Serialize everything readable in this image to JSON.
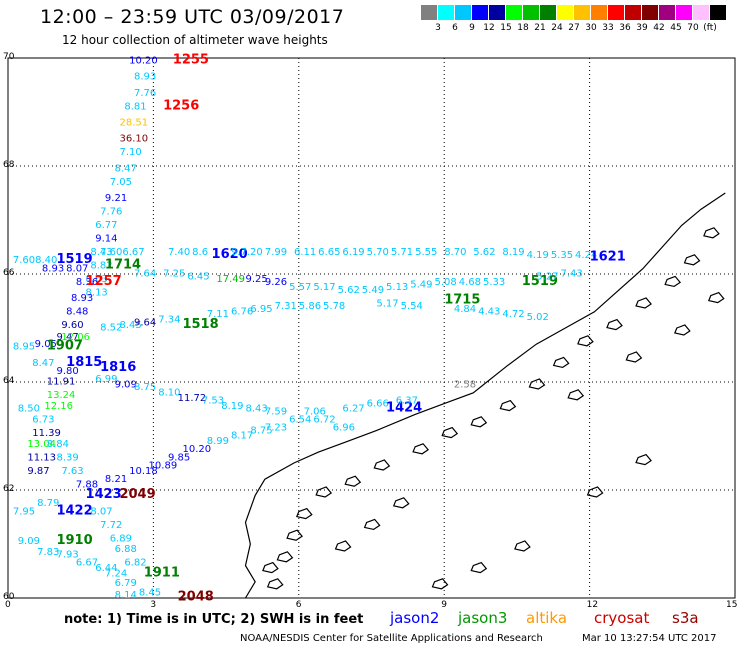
{
  "header": {
    "title": "12:00 – 23:59 UTC 03/09/2017",
    "subtitle": "12 hour collection of altimeter wave heights"
  },
  "scale": {
    "colors": [
      "#808080",
      "#00ffff",
      "#00c8ff",
      "#0000ff",
      "#0000a0",
      "#00ff00",
      "#00c000",
      "#008000",
      "#ffff00",
      "#ffc000",
      "#ff8000",
      "#ff0000",
      "#c00000",
      "#800000",
      "#a00080",
      "#ff00ff",
      "#ffc0ff",
      "#000000"
    ],
    "labels": [
      "3",
      "6",
      "9",
      "12",
      "15",
      "18",
      "21",
      "24",
      "27",
      "30",
      "33",
      "36",
      "39",
      "42",
      "45",
      "70",
      "(ft)"
    ]
  },
  "axes": {
    "y": [
      {
        "v": "70"
      },
      {
        "v": "68"
      },
      {
        "v": "66"
      },
      {
        "v": "64"
      },
      {
        "v": "62"
      },
      {
        "v": "60"
      }
    ],
    "x": [
      {
        "v": "0"
      },
      {
        "v": "3"
      },
      {
        "v": "6"
      },
      {
        "v": "9"
      },
      {
        "v": "12"
      },
      {
        "v": "15"
      }
    ]
  },
  "observations": [
    {
      "t": "10.20",
      "lon": 2.5,
      "lat": 69.9,
      "c": "#0000ff"
    },
    {
      "t": "1255",
      "lon": 3.4,
      "lat": 69.9,
      "c": "#ff0000"
    },
    {
      "t": "8.93",
      "lon": 2.6,
      "lat": 69.6,
      "c": "#00c8ff"
    },
    {
      "t": "7.76",
      "lon": 2.6,
      "lat": 69.3,
      "c": "#00c8ff"
    },
    {
      "t": "8.81",
      "lon": 2.4,
      "lat": 69.05,
      "c": "#00c8ff"
    },
    {
      "t": "1256",
      "lon": 3.2,
      "lat": 69.05,
      "c": "#ff0000"
    },
    {
      "t": "28.51",
      "lon": 2.3,
      "lat": 68.75,
      "c": "#ffc000"
    },
    {
      "t": "36.10",
      "lon": 2.3,
      "lat": 68.45,
      "c": "#800000"
    },
    {
      "t": "7.10",
      "lon": 2.3,
      "lat": 68.2,
      "c": "#00c8ff"
    },
    {
      "t": "8.47",
      "lon": 2.2,
      "lat": 67.9,
      "c": "#00c8ff"
    },
    {
      "t": "7.05",
      "lon": 2.1,
      "lat": 67.65,
      "c": "#00c8ff"
    },
    {
      "t": "9.21",
      "lon": 2.0,
      "lat": 67.35,
      "c": "#0000ff"
    },
    {
      "t": "7.76",
      "lon": 1.9,
      "lat": 67.1,
      "c": "#00c8ff"
    },
    {
      "t": "6.77",
      "lon": 1.8,
      "lat": 66.85,
      "c": "#00c8ff"
    },
    {
      "t": "9.14",
      "lon": 1.8,
      "lat": 66.6,
      "c": "#0000ff"
    },
    {
      "t": "8.43",
      "lon": 1.7,
      "lat": 66.35,
      "c": "#00c8ff"
    },
    {
      "t": "8.82",
      "lon": 1.7,
      "lat": 66.1,
      "c": "#00c8ff"
    },
    {
      "t": "8.63",
      "lon": 1.6,
      "lat": 65.85,
      "c": "#00c8ff"
    },
    {
      "t": "8.13",
      "lon": 1.6,
      "lat": 65.6,
      "c": "#00c8ff"
    },
    {
      "t": "7.608.40",
      "lon": 0.1,
      "lat": 66.2,
      "c": "#00c8ff"
    },
    {
      "t": "1519",
      "lon": 1.0,
      "lat": 66.2,
      "c": "#0000ff"
    },
    {
      "t": "7.606.67",
      "lon": 1.9,
      "lat": 66.35,
      "c": "#00c8ff"
    },
    {
      "t": "8.93",
      "lon": 0.7,
      "lat": 66.05,
      "c": "#0000ff"
    },
    {
      "t": "8.07",
      "lon": 1.2,
      "lat": 66.05,
      "c": "#0000ff"
    },
    {
      "t": "1714",
      "lon": 2.0,
      "lat": 66.1,
      "c": "#008000"
    },
    {
      "t": "8.36",
      "lon": 1.4,
      "lat": 65.8,
      "c": "#0000ff"
    },
    {
      "t": "1257",
      "lon": 1.6,
      "lat": 65.8,
      "c": "#ff0000"
    },
    {
      "t": "8.93",
      "lon": 1.3,
      "lat": 65.5,
      "c": "#0000ff"
    },
    {
      "t": "8.48",
      "lon": 1.2,
      "lat": 65.25,
      "c": "#0000ff"
    },
    {
      "t": "9.60",
      "lon": 1.1,
      "lat": 65.0,
      "c": "#0000a0"
    },
    {
      "t": "9.47",
      "lon": 1.0,
      "lat": 64.78,
      "c": "#0000a0"
    },
    {
      "t": "8.95",
      "lon": 0.1,
      "lat": 64.6,
      "c": "#00c8ff"
    },
    {
      "t": "9.05",
      "lon": 0.55,
      "lat": 64.65,
      "c": "#0000ff"
    },
    {
      "t": "1907",
      "lon": 0.8,
      "lat": 64.6,
      "c": "#008000"
    },
    {
      "t": "12.06",
      "lon": 1.1,
      "lat": 64.78,
      "c": "#00ff00"
    },
    {
      "t": "8.47",
      "lon": 0.5,
      "lat": 64.3,
      "c": "#00c8ff"
    },
    {
      "t": "1815",
      "lon": 1.2,
      "lat": 64.3,
      "c": "#0000ff"
    },
    {
      "t": "1816",
      "lon": 1.9,
      "lat": 64.2,
      "c": "#0000ff"
    },
    {
      "t": "9.80",
      "lon": 1.0,
      "lat": 64.15,
      "c": "#0000ff"
    },
    {
      "t": "6.99",
      "lon": 1.8,
      "lat": 64.0,
      "c": "#00c8ff"
    },
    {
      "t": "11.91",
      "lon": 0.8,
      "lat": 63.95,
      "c": "#0000a0"
    },
    {
      "t": "13.24",
      "lon": 0.8,
      "lat": 63.7,
      "c": "#00ff00"
    },
    {
      "t": "8.50",
      "lon": 0.2,
      "lat": 63.45,
      "c": "#00c8ff"
    },
    {
      "t": "12.16",
      "lon": 0.75,
      "lat": 63.5,
      "c": "#00ff00"
    },
    {
      "t": "6.73",
      "lon": 0.5,
      "lat": 63.25,
      "c": "#00c8ff"
    },
    {
      "t": "11.39",
      "lon": 0.5,
      "lat": 63.0,
      "c": "#0000a0"
    },
    {
      "t": "13.04",
      "lon": 0.4,
      "lat": 62.8,
      "c": "#00ff00"
    },
    {
      "t": "8.84",
      "lon": 0.8,
      "lat": 62.8,
      "c": "#00c8ff"
    },
    {
      "t": "11.13",
      "lon": 0.4,
      "lat": 62.55,
      "c": "#0000a0"
    },
    {
      "t": "8.39",
      "lon": 1.0,
      "lat": 62.55,
      "c": "#00c8ff"
    },
    {
      "t": "9.87",
      "lon": 0.4,
      "lat": 62.3,
      "c": "#0000a0"
    },
    {
      "t": "7.63",
      "lon": 1.1,
      "lat": 62.3,
      "c": "#00c8ff"
    },
    {
      "t": "7.88",
      "lon": 1.4,
      "lat": 62.05,
      "c": "#0000ff"
    },
    {
      "t": "8.21",
      "lon": 2.0,
      "lat": 62.15,
      "c": "#0000ff"
    },
    {
      "t": "10.18",
      "lon": 2.5,
      "lat": 62.3,
      "c": "#0000ff"
    },
    {
      "t": "10.89",
      "lon": 2.9,
      "lat": 62.4,
      "c": "#0000ff"
    },
    {
      "t": "9.85",
      "lon": 3.3,
      "lat": 62.55,
      "c": "#0000ff"
    },
    {
      "t": "10.20",
      "lon": 3.6,
      "lat": 62.7,
      "c": "#0000ff"
    },
    {
      "t": "7.95",
      "lon": 0.1,
      "lat": 61.55,
      "c": "#00c8ff"
    },
    {
      "t": "8.79",
      "lon": 0.6,
      "lat": 61.7,
      "c": "#00c8ff"
    },
    {
      "t": "1422",
      "lon": 1.0,
      "lat": 61.55,
      "c": "#0000ff"
    },
    {
      "t": "1423",
      "lon": 1.6,
      "lat": 61.85,
      "c": "#0000ff"
    },
    {
      "t": "2049",
      "lon": 2.3,
      "lat": 61.85,
      "c": "#800000"
    },
    {
      "t": "8.07",
      "lon": 1.7,
      "lat": 61.55,
      "c": "#00c8ff"
    },
    {
      "t": "7.72",
      "lon": 1.9,
      "lat": 61.3,
      "c": "#00c8ff"
    },
    {
      "t": "9.09",
      "lon": 0.2,
      "lat": 61.0,
      "c": "#00c8ff"
    },
    {
      "t": "1910",
      "lon": 1.0,
      "lat": 61.0,
      "c": "#008000"
    },
    {
      "t": "6.89",
      "lon": 2.1,
      "lat": 61.05,
      "c": "#00c8ff"
    },
    {
      "t": "7.83",
      "lon": 0.6,
      "lat": 60.8,
      "c": "#00c8ff"
    },
    {
      "t": "7.93",
      "lon": 1.0,
      "lat": 60.75,
      "c": "#00c8ff"
    },
    {
      "t": "6.88",
      "lon": 2.2,
      "lat": 60.85,
      "c": "#00c8ff"
    },
    {
      "t": "6.67",
      "lon": 1.4,
      "lat": 60.6,
      "c": "#00c8ff"
    },
    {
      "t": "6.82",
      "lon": 2.4,
      "lat": 60.6,
      "c": "#00c8ff"
    },
    {
      "t": "6.44",
      "lon": 1.8,
      "lat": 60.5,
      "c": "#00c8ff"
    },
    {
      "t": "7.24",
      "lon": 2.0,
      "lat": 60.4,
      "c": "#00c8ff"
    },
    {
      "t": "1911",
      "lon": 2.8,
      "lat": 60.4,
      "c": "#008000"
    },
    {
      "t": "6.79",
      "lon": 2.2,
      "lat": 60.22,
      "c": "#00c8ff"
    },
    {
      "t": "8.14",
      "lon": 2.2,
      "lat": 60.0,
      "c": "#00c8ff"
    },
    {
      "t": "8.45",
      "lon": 2.7,
      "lat": 60.05,
      "c": "#00c8ff"
    },
    {
      "t": "2048",
      "lon": 3.5,
      "lat": 59.95,
      "c": "#800000"
    },
    {
      "t": "7.40",
      "lon": 3.3,
      "lat": 66.35,
      "c": "#00c8ff"
    },
    {
      "t": "8.6",
      "lon": 3.8,
      "lat": 66.35,
      "c": "#00c8ff"
    },
    {
      "t": "1620",
      "lon": 4.2,
      "lat": 66.3,
      "c": "#0000ff"
    },
    {
      "t": "9.7.20",
      "lon": 4.6,
      "lat": 66.35,
      "c": "#00c8ff"
    },
    {
      "t": "7.99",
      "lon": 5.3,
      "lat": 66.35,
      "c": "#00c8ff"
    },
    {
      "t": "6.11",
      "lon": 5.9,
      "lat": 66.35,
      "c": "#00c8ff"
    },
    {
      "t": "6.65",
      "lon": 6.4,
      "lat": 66.35,
      "c": "#00c8ff"
    },
    {
      "t": "6.19",
      "lon": 6.9,
      "lat": 66.35,
      "c": "#00c8ff"
    },
    {
      "t": "5.70",
      "lon": 7.4,
      "lat": 66.35,
      "c": "#00c8ff"
    },
    {
      "t": "5.71",
      "lon": 7.9,
      "lat": 66.35,
      "c": "#00c8ff"
    },
    {
      "t": "5.55",
      "lon": 8.4,
      "lat": 66.35,
      "c": "#00c8ff"
    },
    {
      "t": "8.70",
      "lon": 9.0,
      "lat": 66.35,
      "c": "#00c8ff"
    },
    {
      "t": "5.62",
      "lon": 9.6,
      "lat": 66.35,
      "c": "#00c8ff"
    },
    {
      "t": "8.19",
      "lon": 10.2,
      "lat": 66.35,
      "c": "#00c8ff"
    },
    {
      "t": "4.19",
      "lon": 10.7,
      "lat": 66.3,
      "c": "#00c8ff"
    },
    {
      "t": "5.35",
      "lon": 11.2,
      "lat": 66.3,
      "c": "#00c8ff"
    },
    {
      "t": "4.24",
      "lon": 11.7,
      "lat": 66.3,
      "c": "#00c8ff"
    },
    {
      "t": "1621",
      "lon": 12.0,
      "lat": 66.25,
      "c": "#0000ff"
    },
    {
      "t": "7.64",
      "lon": 2.6,
      "lat": 65.95,
      "c": "#00c8ff"
    },
    {
      "t": "7.25",
      "lon": 3.2,
      "lat": 65.95,
      "c": "#00c8ff"
    },
    {
      "t": "6.45",
      "lon": 3.7,
      "lat": 65.9,
      "c": "#00c8ff"
    },
    {
      "t": "17.49",
      "lon": 4.3,
      "lat": 65.85,
      "c": "#00c000"
    },
    {
      "t": "9.25",
      "lon": 4.9,
      "lat": 65.85,
      "c": "#0000ff"
    },
    {
      "t": "9.26",
      "lon": 5.3,
      "lat": 65.8,
      "c": "#0000ff"
    },
    {
      "t": "5.57",
      "lon": 5.8,
      "lat": 65.7,
      "c": "#00c8ff"
    },
    {
      "t": "5.17",
      "lon": 6.3,
      "lat": 65.7,
      "c": "#00c8ff"
    },
    {
      "t": "5.62",
      "lon": 6.8,
      "lat": 65.65,
      "c": "#00c8ff"
    },
    {
      "t": "5.49",
      "lon": 7.3,
      "lat": 65.65,
      "c": "#00c8ff"
    },
    {
      "t": "5.13",
      "lon": 7.8,
      "lat": 65.7,
      "c": "#00c8ff"
    },
    {
      "t": "5.49",
      "lon": 8.3,
      "lat": 65.75,
      "c": "#00c8ff"
    },
    {
      "t": "5.08",
      "lon": 8.8,
      "lat": 65.8,
      "c": "#00c8ff"
    },
    {
      "t": "4.68",
      "lon": 9.3,
      "lat": 65.8,
      "c": "#00c8ff"
    },
    {
      "t": "5.33",
      "lon": 9.8,
      "lat": 65.8,
      "c": "#00c8ff"
    },
    {
      "t": "1519",
      "lon": 10.6,
      "lat": 65.8,
      "c": "#008000"
    },
    {
      "t": "5.27",
      "lon": 10.9,
      "lat": 65.9,
      "c": "#00c8ff"
    },
    {
      "t": "7.43",
      "lon": 11.4,
      "lat": 65.95,
      "c": "#00c8ff"
    },
    {
      "t": "1715",
      "lon": 9.0,
      "lat": 65.45,
      "c": "#008000"
    },
    {
      "t": "5.86",
      "lon": 6.0,
      "lat": 65.35,
      "c": "#00c8ff"
    },
    {
      "t": "5.78",
      "lon": 6.5,
      "lat": 65.35,
      "c": "#00c8ff"
    },
    {
      "t": "5.17",
      "lon": 7.6,
      "lat": 65.4,
      "c": "#00c8ff"
    },
    {
      "t": "5.54",
      "lon": 8.1,
      "lat": 65.35,
      "c": "#00c8ff"
    },
    {
      "t": "4.84",
      "lon": 9.2,
      "lat": 65.3,
      "c": "#00c8ff"
    },
    {
      "t": "4.43",
      "lon": 9.7,
      "lat": 65.25,
      "c": "#00c8ff"
    },
    {
      "t": "4.72",
      "lon": 10.2,
      "lat": 65.2,
      "c": "#00c8ff"
    },
    {
      "t": "5.02",
      "lon": 10.7,
      "lat": 65.15,
      "c": "#00c8ff"
    },
    {
      "t": "8.52",
      "lon": 1.9,
      "lat": 64.95,
      "c": "#00c8ff"
    },
    {
      "t": "8.45",
      "lon": 2.3,
      "lat": 65.0,
      "c": "#00c8ff"
    },
    {
      "t": "9.64",
      "lon": 2.6,
      "lat": 65.05,
      "c": "#0000a0"
    },
    {
      "t": "7.34",
      "lon": 3.1,
      "lat": 65.1,
      "c": "#00c8ff"
    },
    {
      "t": "1518",
      "lon": 3.6,
      "lat": 65.0,
      "c": "#008000"
    },
    {
      "t": "7.11",
      "lon": 4.1,
      "lat": 65.2,
      "c": "#00c8ff"
    },
    {
      "t": "6.76",
      "lon": 4.6,
      "lat": 65.25,
      "c": "#00c8ff"
    },
    {
      "t": "6.95",
      "lon": 5.0,
      "lat": 65.3,
      "c": "#00c8ff"
    },
    {
      "t": "7.31",
      "lon": 5.5,
      "lat": 65.35,
      "c": "#00c8ff"
    },
    {
      "t": "9.09",
      "lon": 2.2,
      "lat": 63.9,
      "c": "#0000ff"
    },
    {
      "t": "8.75",
      "lon": 2.6,
      "lat": 63.85,
      "c": "#00c8ff"
    },
    {
      "t": "8.10",
      "lon": 3.1,
      "lat": 63.75,
      "c": "#00c8ff"
    },
    {
      "t": "11.72",
      "lon": 3.5,
      "lat": 63.65,
      "c": "#0000a0"
    },
    {
      "t": "7.53",
      "lon": 4.0,
      "lat": 63.6,
      "c": "#00c8ff"
    },
    {
      "t": "8.19",
      "lon": 4.4,
      "lat": 63.5,
      "c": "#00c8ff"
    },
    {
      "t": "8.43",
      "lon": 4.9,
      "lat": 63.45,
      "c": "#00c8ff"
    },
    {
      "t": "7.59",
      "lon": 5.3,
      "lat": 63.4,
      "c": "#00c8ff"
    },
    {
      "t": "7.06",
      "lon": 6.1,
      "lat": 63.4,
      "c": "#00c8ff"
    },
    {
      "t": "7.23",
      "lon": 5.3,
      "lat": 63.1,
      "c": "#00c8ff"
    },
    {
      "t": "6.54",
      "lon": 5.8,
      "lat": 63.25,
      "c": "#00c8ff"
    },
    {
      "t": "6.72",
      "lon": 6.3,
      "lat": 63.25,
      "c": "#00c8ff"
    },
    {
      "t": "6.96",
      "lon": 6.7,
      "lat": 63.1,
      "c": "#00c8ff"
    },
    {
      "t": "6.27",
      "lon": 6.9,
      "lat": 63.45,
      "c": "#00c8ff"
    },
    {
      "t": "6.66",
      "lon": 7.4,
      "lat": 63.55,
      "c": "#00c8ff"
    },
    {
      "t": "1424",
      "lon": 7.8,
      "lat": 63.45,
      "c": "#0000ff"
    },
    {
      "t": "6.37",
      "lon": 8.0,
      "lat": 63.6,
      "c": "#00c8ff"
    },
    {
      "t": "2.58",
      "lon": 9.2,
      "lat": 63.9,
      "c": "#808080"
    },
    {
      "t": "8.99",
      "lon": 4.1,
      "lat": 62.85,
      "c": "#00c8ff"
    },
    {
      "t": "8.17",
      "lon": 4.6,
      "lat": 62.95,
      "c": "#00c8ff"
    },
    {
      "t": "8.75",
      "lon": 5.0,
      "lat": 63.05,
      "c": "#00c8ff"
    }
  ],
  "note": "note: 1) Time is in UTC; 2) SWH is in feet",
  "legend": [
    {
      "name": "jason2",
      "color": "#0000ff"
    },
    {
      "name": "jason3",
      "color": "#009900"
    },
    {
      "name": "altika",
      "color": "#ff9900"
    },
    {
      "name": "cryosat",
      "color": "#cc0000"
    },
    {
      "name": "s3a",
      "color": "#990000"
    }
  ],
  "footer": {
    "credit": "NOAA/NESDIS Center for Satellite Applications and Research",
    "stamp": "Mar 10 13:27:54 UTC 2017"
  }
}
